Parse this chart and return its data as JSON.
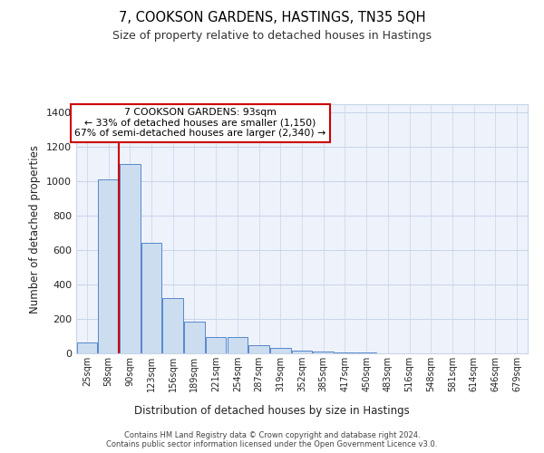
{
  "title1": "7, COOKSON GARDENS, HASTINGS, TN35 5QH",
  "title2": "Size of property relative to detached houses in Hastings",
  "xlabel": "Distribution of detached houses by size in Hastings",
  "ylabel": "Number of detached properties",
  "bar_labels": [
    "25sqm",
    "58sqm",
    "90sqm",
    "123sqm",
    "156sqm",
    "189sqm",
    "221sqm",
    "254sqm",
    "287sqm",
    "319sqm",
    "352sqm",
    "385sqm",
    "417sqm",
    "450sqm",
    "483sqm",
    "516sqm",
    "548sqm",
    "581sqm",
    "614sqm",
    "646sqm",
    "679sqm"
  ],
  "bar_values": [
    65,
    1010,
    1100,
    645,
    320,
    185,
    95,
    95,
    50,
    30,
    15,
    10,
    5,
    3,
    2,
    2,
    1,
    1,
    1,
    1,
    1
  ],
  "bar_color": "#ccddf0",
  "bar_edge_color": "#5588cc",
  "vline_x_index": 2,
  "vline_color": "#cc0000",
  "annotation_text": "7 COOKSON GARDENS: 93sqm\n← 33% of detached houses are smaller (1,150)\n67% of semi-detached houses are larger (2,340) →",
  "annotation_box_color": "white",
  "annotation_box_edge_color": "#cc0000",
  "footer_text": "Contains HM Land Registry data © Crown copyright and database right 2024.\nContains public sector information licensed under the Open Government Licence v3.0.",
  "ylim": [
    0,
    1450
  ],
  "bg_color": "#eef2fb",
  "grid_color": "#c8d4e8",
  "fig_width": 6.0,
  "fig_height": 5.0,
  "fig_dpi": 100
}
